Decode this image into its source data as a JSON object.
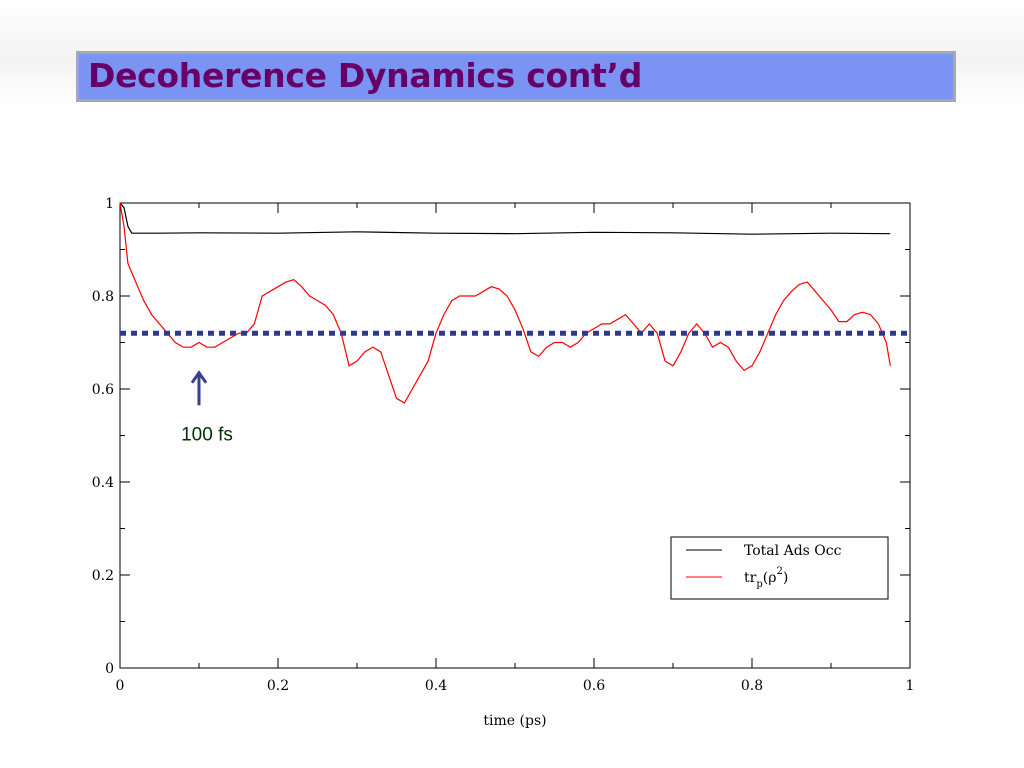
{
  "slide": {
    "title": "Decoherence Dynamics cont’d"
  },
  "colors": {
    "title_bg": "#7b93f2",
    "title_text": "#660066",
    "total_ads_occ": "#000000",
    "purity": "#ff0000",
    "threshold": "#2e3a87",
    "arrow": "#3a3f8f",
    "annotation": "#003300"
  },
  "chart_data": {
    "type": "line",
    "title": "",
    "xlabel": "time (ps)",
    "ylabel": "",
    "xlim": [
      0,
      1
    ],
    "ylim": [
      0,
      1
    ],
    "x_ticks": [
      "0",
      "0.2",
      "0.4",
      "0.6",
      "0.8",
      "1"
    ],
    "y_ticks": [
      "0",
      "0.2",
      "0.4",
      "0.6",
      "0.8",
      "1"
    ],
    "grid": false,
    "legend_position": "bottom-right",
    "series": [
      {
        "name": "Total Ads Occ",
        "color": "#000000",
        "x": [
          0,
          0.005,
          0.01,
          0.015,
          0.05,
          0.1,
          0.2,
          0.3,
          0.4,
          0.5,
          0.6,
          0.7,
          0.8,
          0.85,
          0.9,
          0.975
        ],
        "y": [
          1.0,
          0.99,
          0.95,
          0.935,
          0.935,
          0.936,
          0.935,
          0.938,
          0.935,
          0.934,
          0.937,
          0.936,
          0.933,
          0.934,
          0.935,
          0.934
        ]
      },
      {
        "name": "tr",
        "name_sub": "p",
        "name_open": "(ρ",
        "name_sup": "2",
        "name_close": ")",
        "color": "#ff0000",
        "x": [
          0,
          0.005,
          0.01,
          0.02,
          0.03,
          0.04,
          0.05,
          0.06,
          0.07,
          0.08,
          0.09,
          0.1,
          0.11,
          0.12,
          0.13,
          0.14,
          0.15,
          0.16,
          0.17,
          0.18,
          0.19,
          0.2,
          0.21,
          0.22,
          0.23,
          0.24,
          0.25,
          0.26,
          0.27,
          0.28,
          0.29,
          0.3,
          0.31,
          0.32,
          0.33,
          0.34,
          0.35,
          0.36,
          0.37,
          0.38,
          0.39,
          0.4,
          0.41,
          0.42,
          0.43,
          0.44,
          0.45,
          0.46,
          0.47,
          0.48,
          0.49,
          0.5,
          0.51,
          0.52,
          0.53,
          0.54,
          0.55,
          0.56,
          0.57,
          0.58,
          0.59,
          0.6,
          0.61,
          0.62,
          0.63,
          0.64,
          0.65,
          0.66,
          0.67,
          0.68,
          0.69,
          0.7,
          0.71,
          0.72,
          0.73,
          0.74,
          0.75,
          0.76,
          0.77,
          0.78,
          0.79,
          0.8,
          0.81,
          0.82,
          0.83,
          0.84,
          0.85,
          0.86,
          0.87,
          0.88,
          0.89,
          0.9,
          0.91,
          0.92,
          0.93,
          0.94,
          0.95,
          0.96,
          0.97,
          0.975
        ],
        "y": [
          1.0,
          0.95,
          0.87,
          0.83,
          0.79,
          0.76,
          0.74,
          0.72,
          0.7,
          0.69,
          0.69,
          0.7,
          0.69,
          0.69,
          0.7,
          0.71,
          0.72,
          0.72,
          0.74,
          0.8,
          0.81,
          0.82,
          0.83,
          0.835,
          0.82,
          0.8,
          0.79,
          0.78,
          0.76,
          0.72,
          0.65,
          0.66,
          0.68,
          0.69,
          0.68,
          0.63,
          0.58,
          0.57,
          0.6,
          0.63,
          0.66,
          0.72,
          0.76,
          0.79,
          0.8,
          0.8,
          0.8,
          0.81,
          0.82,
          0.815,
          0.8,
          0.77,
          0.73,
          0.68,
          0.67,
          0.69,
          0.7,
          0.7,
          0.69,
          0.7,
          0.72,
          0.73,
          0.74,
          0.74,
          0.75,
          0.76,
          0.74,
          0.72,
          0.74,
          0.72,
          0.66,
          0.65,
          0.68,
          0.72,
          0.74,
          0.72,
          0.69,
          0.7,
          0.69,
          0.66,
          0.64,
          0.65,
          0.68,
          0.72,
          0.76,
          0.79,
          0.81,
          0.825,
          0.83,
          0.81,
          0.79,
          0.77,
          0.745,
          0.745,
          0.76,
          0.765,
          0.76,
          0.74,
          0.7,
          0.65
        ]
      }
    ],
    "reference_line": {
      "y": 0.72,
      "style": "dotted"
    },
    "annotation": {
      "text": "100 fs",
      "arrow_x": 0.1,
      "arrow_y_top": 0.635,
      "arrow_y_bottom": 0.565
    }
  }
}
